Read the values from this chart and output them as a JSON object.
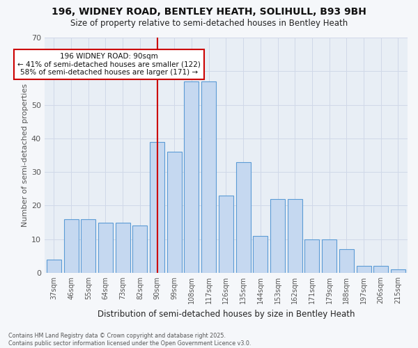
{
  "title": "196, WIDNEY ROAD, BENTLEY HEATH, SOLIHULL, B93 9BH",
  "subtitle": "Size of property relative to semi-detached houses in Bentley Heath",
  "xlabel": "Distribution of semi-detached houses by size in Bentley Heath",
  "ylabel": "Number of semi-detached properties",
  "footer1": "Contains HM Land Registry data © Crown copyright and database right 2025.",
  "footer2": "Contains public sector information licensed under the Open Government Licence v3.0.",
  "bin_labels": [
    "37sqm",
    "46sqm",
    "55sqm",
    "64sqm",
    "73sqm",
    "82sqm",
    "90sqm",
    "99sqm",
    "108sqm",
    "117sqm",
    "126sqm",
    "135sqm",
    "144sqm",
    "153sqm",
    "162sqm",
    "171sqm",
    "179sqm",
    "188sqm",
    "197sqm",
    "206sqm",
    "215sqm"
  ],
  "bar_heights": [
    4,
    16,
    16,
    15,
    15,
    14,
    39,
    36,
    57,
    57,
    23,
    33,
    11,
    22,
    22,
    10,
    10,
    7,
    2,
    2,
    1
  ],
  "highlight_idx": 6,
  "highlight_label": "196 WIDNEY ROAD: 90sqm",
  "pct_smaller": 41,
  "pct_larger": 58,
  "n_smaller": 122,
  "n_larger": 171,
  "bar_color": "#c5d8f0",
  "bar_edge_color": "#5b9bd5",
  "highlight_line_color": "#cc0000",
  "grid_color": "#d0d8e8",
  "bg_color": "#e8eef5",
  "fig_bg_color": "#f5f7fa",
  "ylim_max": 70,
  "yticks": [
    0,
    10,
    20,
    30,
    40,
    50,
    60,
    70
  ]
}
